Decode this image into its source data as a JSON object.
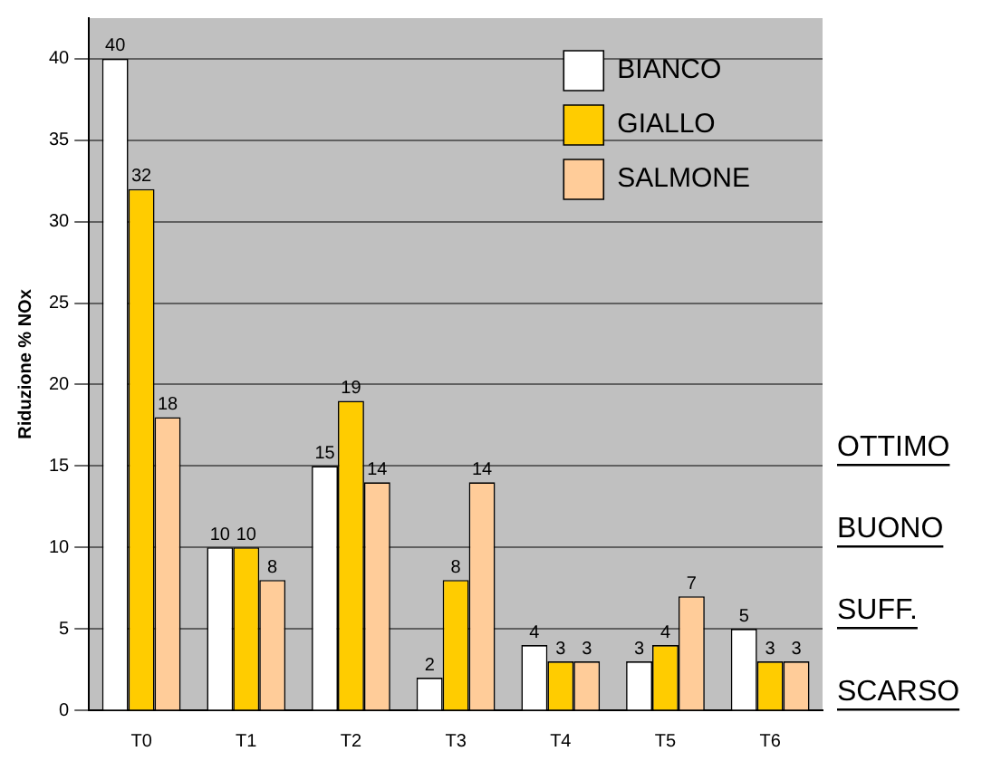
{
  "chart_data": {
    "type": "bar",
    "ylabel": "Riduzione % NOx",
    "categories": [
      "T0",
      "T1",
      "T2",
      "T3",
      "T4",
      "T5",
      "T6"
    ],
    "series": [
      {
        "name": "BIANCO",
        "color": "#ffffff",
        "values": [
          40,
          10,
          15,
          2,
          4,
          3,
          5
        ]
      },
      {
        "name": "GIALLO",
        "color": "#ffcc00",
        "values": [
          32,
          10,
          19,
          8,
          3,
          4,
          3
        ]
      },
      {
        "name": "SALMONE",
        "color": "#ffcc99",
        "values": [
          18,
          8,
          14,
          14,
          3,
          7,
          3
        ]
      }
    ],
    "ylim": [
      0,
      42.5
    ],
    "yticks": [
      0,
      5,
      10,
      15,
      20,
      25,
      30,
      35,
      40
    ],
    "grid": "y",
    "legend": "top right",
    "data_labels": true,
    "annotations": [
      "OTTIMO",
      "BUONO",
      "SUFF.",
      "SCARSO"
    ]
  }
}
